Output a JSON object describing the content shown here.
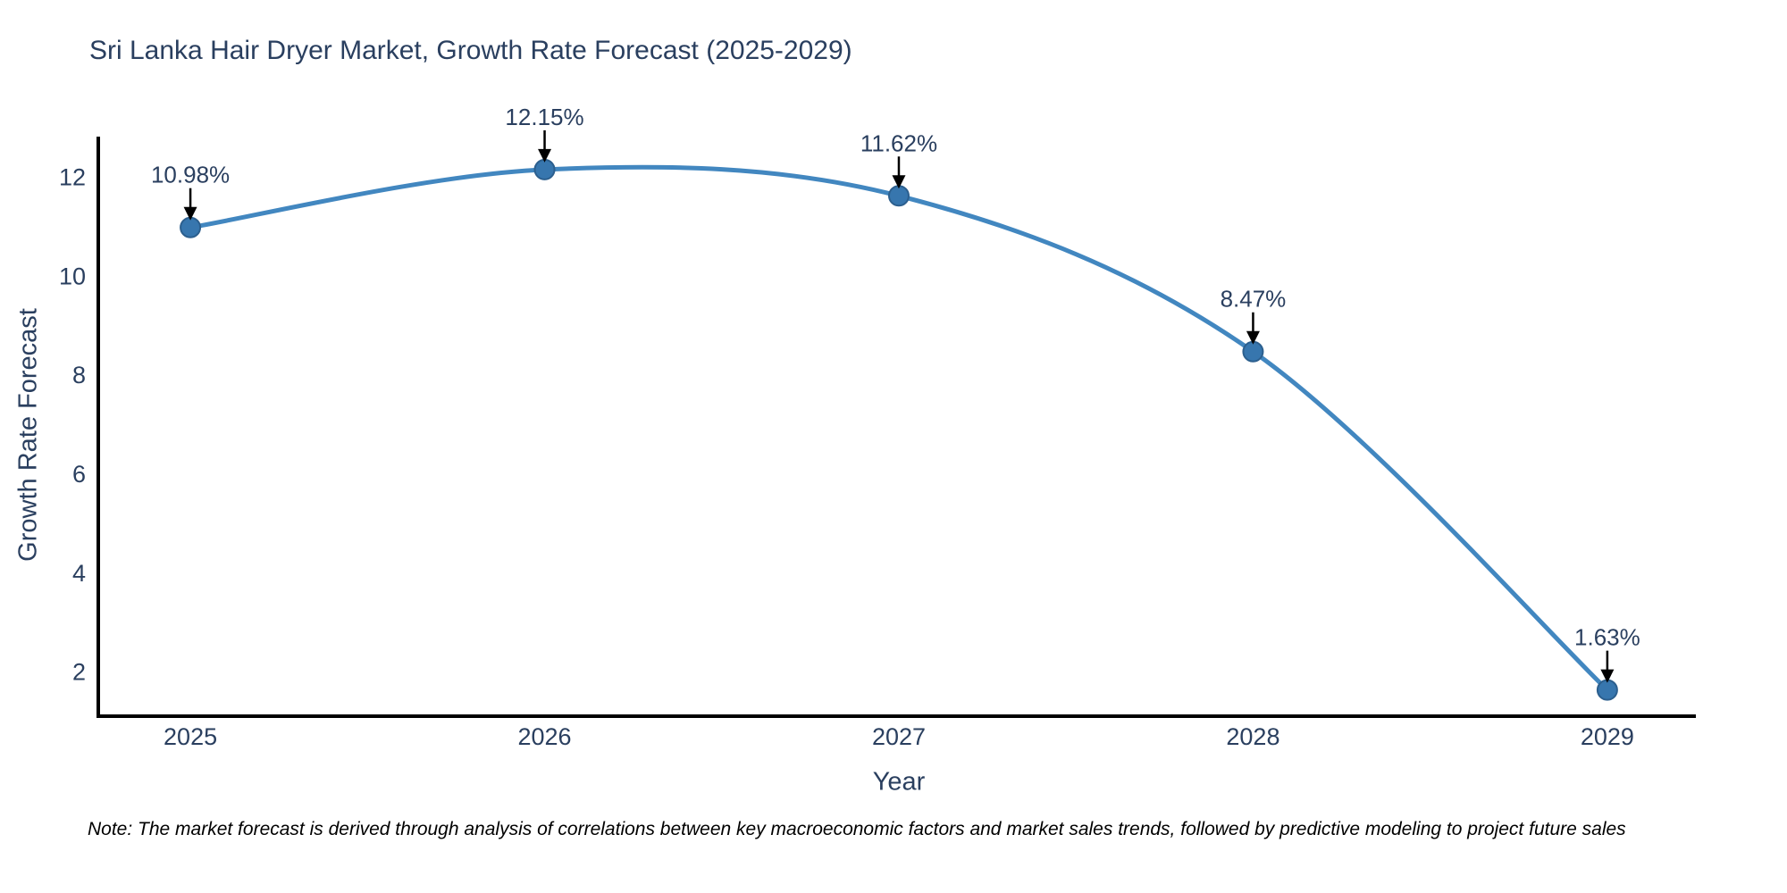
{
  "note": "Note: The market forecast is derived through analysis of correlations between key macroeconomic factors and market sales trends, followed by predictive modeling to project future sales",
  "chart_data": {
    "type": "line",
    "title": "Sri Lanka Hair Dryer Market, Growth Rate Forecast (2025-2029)",
    "xlabel": "Year",
    "ylabel": "Growth Rate Forecast",
    "categories": [
      2025,
      2026,
      2027,
      2028,
      2029
    ],
    "series": [
      {
        "name": "Growth Rate Forecast",
        "values": [
          10.98,
          12.15,
          11.62,
          8.47,
          1.63
        ],
        "point_labels": [
          "10.98%",
          "12.15%",
          "11.62%",
          "8.47%",
          "1.63%"
        ]
      }
    ],
    "line_shape": "spline",
    "markers": true,
    "grid": false,
    "legend": "none",
    "yticks": [
      2,
      4,
      6,
      8,
      10,
      12
    ],
    "xticks": [
      2025,
      2026,
      2027,
      2028,
      2029
    ],
    "ylim": [
      1.1,
      12.78
    ],
    "xlim": [
      2024.74,
      2029.25
    ],
    "colors": {
      "line": "#4287c0",
      "marker": "#3776ae",
      "marker_edge": "#2c5f8e",
      "axis": "#000000",
      "text": "#2a3f5f",
      "annotation_text": "#2a3f5f",
      "arrow": "#000000"
    }
  }
}
